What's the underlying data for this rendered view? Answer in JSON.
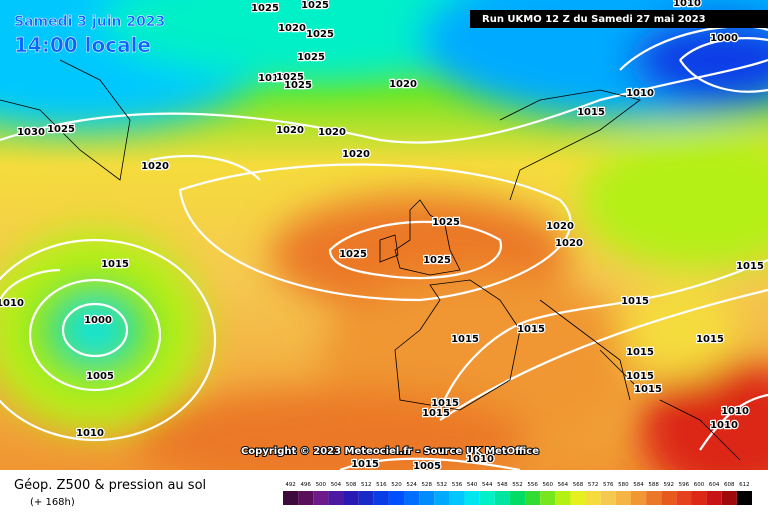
{
  "header": {
    "date": "Samedi 3 juin 2023",
    "time": "14:00 locale",
    "run": "Run UKMO 12 Z du Samedi 27 mai 2023"
  },
  "copyright": "Copyright © 2023 Meteociel.fr - Source UK MetOffice",
  "footer": {
    "title": "Géop. Z500 & pression au sol",
    "lead": "(+ 168h)"
  },
  "isobar_labels": [
    "1025",
    "1025",
    "1020",
    "1025",
    "1025",
    "1010",
    "1025",
    "1025",
    "1020",
    "1025",
    "1030",
    "1020",
    "1020",
    "1020",
    "1020",
    "1010",
    "1000",
    "1010",
    "1015",
    "1025",
    "1025",
    "1025",
    "1020",
    "1020",
    "1015",
    "1010",
    "1000",
    "1005",
    "1010",
    "1015",
    "1015",
    "1015",
    "1015",
    "1015",
    "1015",
    "1015",
    "1015",
    "1015",
    "1015",
    "1010",
    "1010",
    "1015",
    "1005",
    "1010"
  ],
  "scale": {
    "values": [
      492,
      496,
      500,
      504,
      508,
      512,
      516,
      520,
      524,
      528,
      532,
      536,
      540,
      544,
      548,
      552,
      556,
      560,
      564,
      568,
      572,
      576,
      580,
      584,
      588,
      592,
      596,
      600,
      604,
      608,
      612
    ],
    "colors": [
      "#3d0a3d",
      "#5a0f5a",
      "#6e1a8a",
      "#4b1aa0",
      "#2a1ab4",
      "#1a2ac8",
      "#0a3ce6",
      "#0050ff",
      "#006eff",
      "#008cff",
      "#00aaff",
      "#00c8ff",
      "#00e6f0",
      "#00f0c8",
      "#00e6a0",
      "#00dc64",
      "#32dc32",
      "#78e61e",
      "#b4f014",
      "#e6f01e",
      "#f5dc3c",
      "#f5c850",
      "#f5b446",
      "#f09632",
      "#eb7828",
      "#e65a1e",
      "#e6411e",
      "#dc2814",
      "#c81414",
      "#a00a0a",
      "#000000"
    ]
  }
}
